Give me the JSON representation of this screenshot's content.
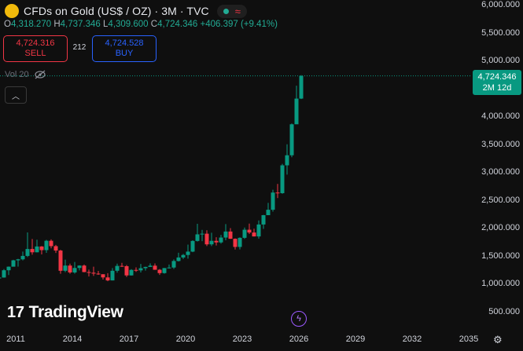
{
  "header": {
    "title": "CFDs on Gold (US$ / OZ) · 3M · TVC",
    "status": {
      "connected_icon": "status-dot-icon",
      "wave_icon": "≈"
    }
  },
  "ohlc": {
    "o_label": "O",
    "o": "4,318.270",
    "h_label": "H",
    "h": "4,737.346",
    "l_label": "L",
    "l": "4,309.600",
    "c_label": "C",
    "c": "4,724.346",
    "change": "+406.397 (+9.41%)"
  },
  "trade": {
    "sell_price": "4,724.316",
    "sell_label": "SELL",
    "spread": "212",
    "buy_price": "4,724.528",
    "buy_label": "BUY"
  },
  "volume": {
    "label": "Vol 20",
    "icon": "eye-off-icon"
  },
  "price_badge": {
    "price": "4,724.346",
    "countdown": "2M 12d"
  },
  "brand": {
    "name": "TradingView"
  },
  "colors": {
    "up": "#089981",
    "down": "#f23645",
    "background": "#0f0f0f"
  },
  "chart_data": {
    "type": "candlestick",
    "timeframe": "3M",
    "y_ticks": [
      "6,000.000",
      "5,500.000",
      "5,000.000",
      "4,500.000",
      "4,000.000",
      "3,500.000",
      "3,000.000",
      "2,500.000",
      "2,000.000",
      "1,500.000",
      "1,000.000",
      "500.000"
    ],
    "x_ticks": [
      "2011",
      "2014",
      "2017",
      "2020",
      "2023",
      "2026",
      "2029",
      "2032",
      "2035"
    ],
    "ylim": [
      350,
      6100
    ],
    "candles": [
      {
        "t": "2010 Q1",
        "o": 1097,
        "h": 1162,
        "l": 1045,
        "c": 1113
      },
      {
        "t": "2010 Q2",
        "o": 1113,
        "h": 1265,
        "l": 1110,
        "c": 1243
      },
      {
        "t": "2010 Q3",
        "o": 1243,
        "h": 1310,
        "l": 1157,
        "c": 1307
      },
      {
        "t": "2010 Q4",
        "o": 1307,
        "h": 1431,
        "l": 1310,
        "c": 1421
      },
      {
        "t": "2011 Q1",
        "o": 1421,
        "h": 1447,
        "l": 1308,
        "c": 1439
      },
      {
        "t": "2011 Q2",
        "o": 1439,
        "h": 1577,
        "l": 1420,
        "c": 1500
      },
      {
        "t": "2011 Q3",
        "o": 1500,
        "h": 1920,
        "l": 1480,
        "c": 1624
      },
      {
        "t": "2011 Q4",
        "o": 1624,
        "h": 1803,
        "l": 1522,
        "c": 1565
      },
      {
        "t": "2012 Q1",
        "o": 1565,
        "h": 1790,
        "l": 1563,
        "c": 1669
      },
      {
        "t": "2012 Q2",
        "o": 1669,
        "h": 1677,
        "l": 1527,
        "c": 1604
      },
      {
        "t": "2012 Q3",
        "o": 1604,
        "h": 1787,
        "l": 1555,
        "c": 1771
      },
      {
        "t": "2012 Q4",
        "o": 1771,
        "h": 1796,
        "l": 1635,
        "c": 1675
      },
      {
        "t": "2013 Q1",
        "o": 1675,
        "h": 1698,
        "l": 1554,
        "c": 1596
      },
      {
        "t": "2013 Q2",
        "o": 1596,
        "h": 1609,
        "l": 1180,
        "c": 1234
      },
      {
        "t": "2013 Q3",
        "o": 1234,
        "h": 1434,
        "l": 1208,
        "c": 1327
      },
      {
        "t": "2013 Q4",
        "o": 1327,
        "h": 1361,
        "l": 1181,
        "c": 1204
      },
      {
        "t": "2014 Q1",
        "o": 1204,
        "h": 1392,
        "l": 1182,
        "c": 1284
      },
      {
        "t": "2014 Q2",
        "o": 1284,
        "h": 1332,
        "l": 1240,
        "c": 1327
      },
      {
        "t": "2014 Q3",
        "o": 1327,
        "h": 1345,
        "l": 1206,
        "c": 1211
      },
      {
        "t": "2014 Q4",
        "o": 1211,
        "h": 1255,
        "l": 1131,
        "c": 1199
      },
      {
        "t": "2015 Q1",
        "o": 1199,
        "h": 1307,
        "l": 1142,
        "c": 1183
      },
      {
        "t": "2015 Q2",
        "o": 1183,
        "h": 1232,
        "l": 1162,
        "c": 1172
      },
      {
        "t": "2015 Q3",
        "o": 1172,
        "h": 1170,
        "l": 1077,
        "c": 1115
      },
      {
        "t": "2015 Q4",
        "o": 1115,
        "h": 1191,
        "l": 1046,
        "c": 1061
      },
      {
        "t": "2016 Q1",
        "o": 1061,
        "h": 1282,
        "l": 1061,
        "c": 1234
      },
      {
        "t": "2016 Q2",
        "o": 1234,
        "h": 1362,
        "l": 1200,
        "c": 1321
      },
      {
        "t": "2016 Q3",
        "o": 1321,
        "h": 1375,
        "l": 1304,
        "c": 1316
      },
      {
        "t": "2016 Q4",
        "o": 1316,
        "h": 1337,
        "l": 1123,
        "c": 1151
      },
      {
        "t": "2017 Q1",
        "o": 1151,
        "h": 1263,
        "l": 1147,
        "c": 1249
      },
      {
        "t": "2017 Q2",
        "o": 1249,
        "h": 1295,
        "l": 1213,
        "c": 1241
      },
      {
        "t": "2017 Q3",
        "o": 1241,
        "h": 1357,
        "l": 1204,
        "c": 1280
      },
      {
        "t": "2017 Q4",
        "o": 1280,
        "h": 1307,
        "l": 1236,
        "c": 1303
      },
      {
        "t": "2018 Q1",
        "o": 1303,
        "h": 1366,
        "l": 1302,
        "c": 1325
      },
      {
        "t": "2018 Q2",
        "o": 1325,
        "h": 1365,
        "l": 1250,
        "c": 1252
      },
      {
        "t": "2018 Q3",
        "o": 1252,
        "h": 1265,
        "l": 1160,
        "c": 1192
      },
      {
        "t": "2018 Q4",
        "o": 1192,
        "h": 1285,
        "l": 1183,
        "c": 1282
      },
      {
        "t": "2019 Q1",
        "o": 1282,
        "h": 1346,
        "l": 1276,
        "c": 1292
      },
      {
        "t": "2019 Q2",
        "o": 1292,
        "h": 1438,
        "l": 1266,
        "c": 1409
      },
      {
        "t": "2019 Q3",
        "o": 1409,
        "h": 1557,
        "l": 1400,
        "c": 1472
      },
      {
        "t": "2019 Q4",
        "o": 1472,
        "h": 1535,
        "l": 1445,
        "c": 1517
      },
      {
        "t": "2020 Q1",
        "o": 1517,
        "h": 1703,
        "l": 1451,
        "c": 1577
      },
      {
        "t": "2020 Q2",
        "o": 1577,
        "h": 1780,
        "l": 1568,
        "c": 1768
      },
      {
        "t": "2020 Q3",
        "o": 1768,
        "h": 2075,
        "l": 1757,
        "c": 1886
      },
      {
        "t": "2020 Q4",
        "o": 1886,
        "h": 1966,
        "l": 1764,
        "c": 1898
      },
      {
        "t": "2021 Q1",
        "o": 1898,
        "h": 1959,
        "l": 1676,
        "c": 1707
      },
      {
        "t": "2021 Q2",
        "o": 1707,
        "h": 1916,
        "l": 1677,
        "c": 1770
      },
      {
        "t": "2021 Q3",
        "o": 1770,
        "h": 1834,
        "l": 1687,
        "c": 1742
      },
      {
        "t": "2021 Q4",
        "o": 1742,
        "h": 1877,
        "l": 1721,
        "c": 1829
      },
      {
        "t": "2022 Q1",
        "o": 1829,
        "h": 2070,
        "l": 1780,
        "c": 1937
      },
      {
        "t": "2022 Q2",
        "o": 1937,
        "h": 1998,
        "l": 1805,
        "c": 1807
      },
      {
        "t": "2022 Q3",
        "o": 1807,
        "h": 1814,
        "l": 1614,
        "c": 1661
      },
      {
        "t": "2022 Q4",
        "o": 1661,
        "h": 1833,
        "l": 1616,
        "c": 1824
      },
      {
        "t": "2023 Q1",
        "o": 1824,
        "h": 2009,
        "l": 1804,
        "c": 1969
      },
      {
        "t": "2023 Q2",
        "o": 1969,
        "h": 2079,
        "l": 1893,
        "c": 1919
      },
      {
        "t": "2023 Q3",
        "o": 1919,
        "h": 1987,
        "l": 1848,
        "c": 1849
      },
      {
        "t": "2023 Q4",
        "o": 1849,
        "h": 2135,
        "l": 1810,
        "c": 2063
      },
      {
        "t": "2024 Q1",
        "o": 2063,
        "h": 2236,
        "l": 1984,
        "c": 2230
      },
      {
        "t": "2024 Q2",
        "o": 2230,
        "h": 2450,
        "l": 2277,
        "c": 2327
      },
      {
        "t": "2024 Q3",
        "o": 2327,
        "h": 2685,
        "l": 2293,
        "c": 2635
      },
      {
        "t": "2024 Q4",
        "o": 2635,
        "h": 2790,
        "l": 2536,
        "c": 2624
      },
      {
        "t": "2025 Q1",
        "o": 2624,
        "h": 3149,
        "l": 2614,
        "c": 3123
      },
      {
        "t": "2025 Q2",
        "o": 3123,
        "h": 3500,
        "l": 2957,
        "c": 3303
      },
      {
        "t": "2025 Q3",
        "o": 3303,
        "h": 3872,
        "l": 3268,
        "c": 3858
      },
      {
        "t": "2025 Q4",
        "o": 3858,
        "h": 4549,
        "l": 3890,
        "c": 4318
      },
      {
        "t": "2026 Q1",
        "o": 4318.27,
        "h": 4737.346,
        "l": 4309.6,
        "c": 4724.346
      }
    ]
  }
}
